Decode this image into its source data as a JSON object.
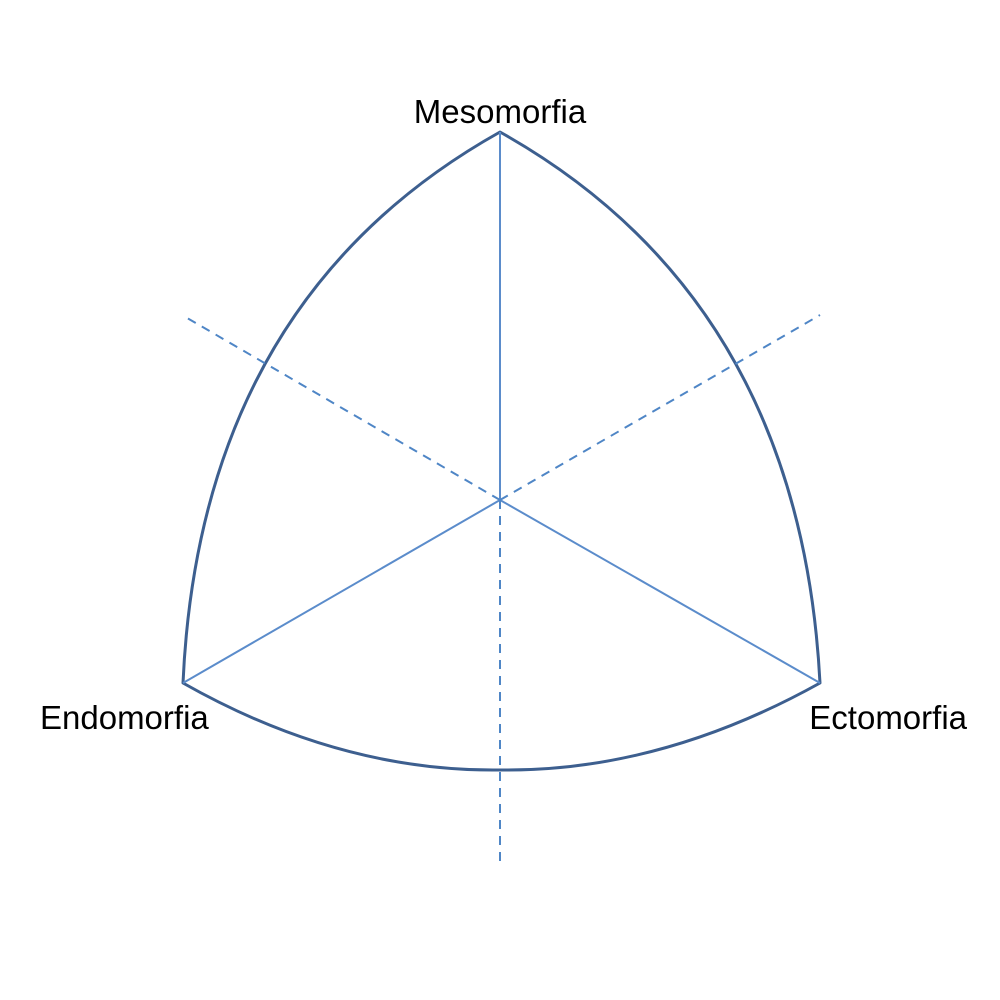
{
  "diagram": {
    "labels": {
      "top": "Mesomorfia",
      "left": "Endomorfia",
      "right": "Ectomorfia"
    },
    "colors": {
      "outline": "#3d5f8f",
      "axis_solid": "#5b8ccb",
      "axis_dashed": "#4f86c6",
      "text": "#000000"
    }
  }
}
